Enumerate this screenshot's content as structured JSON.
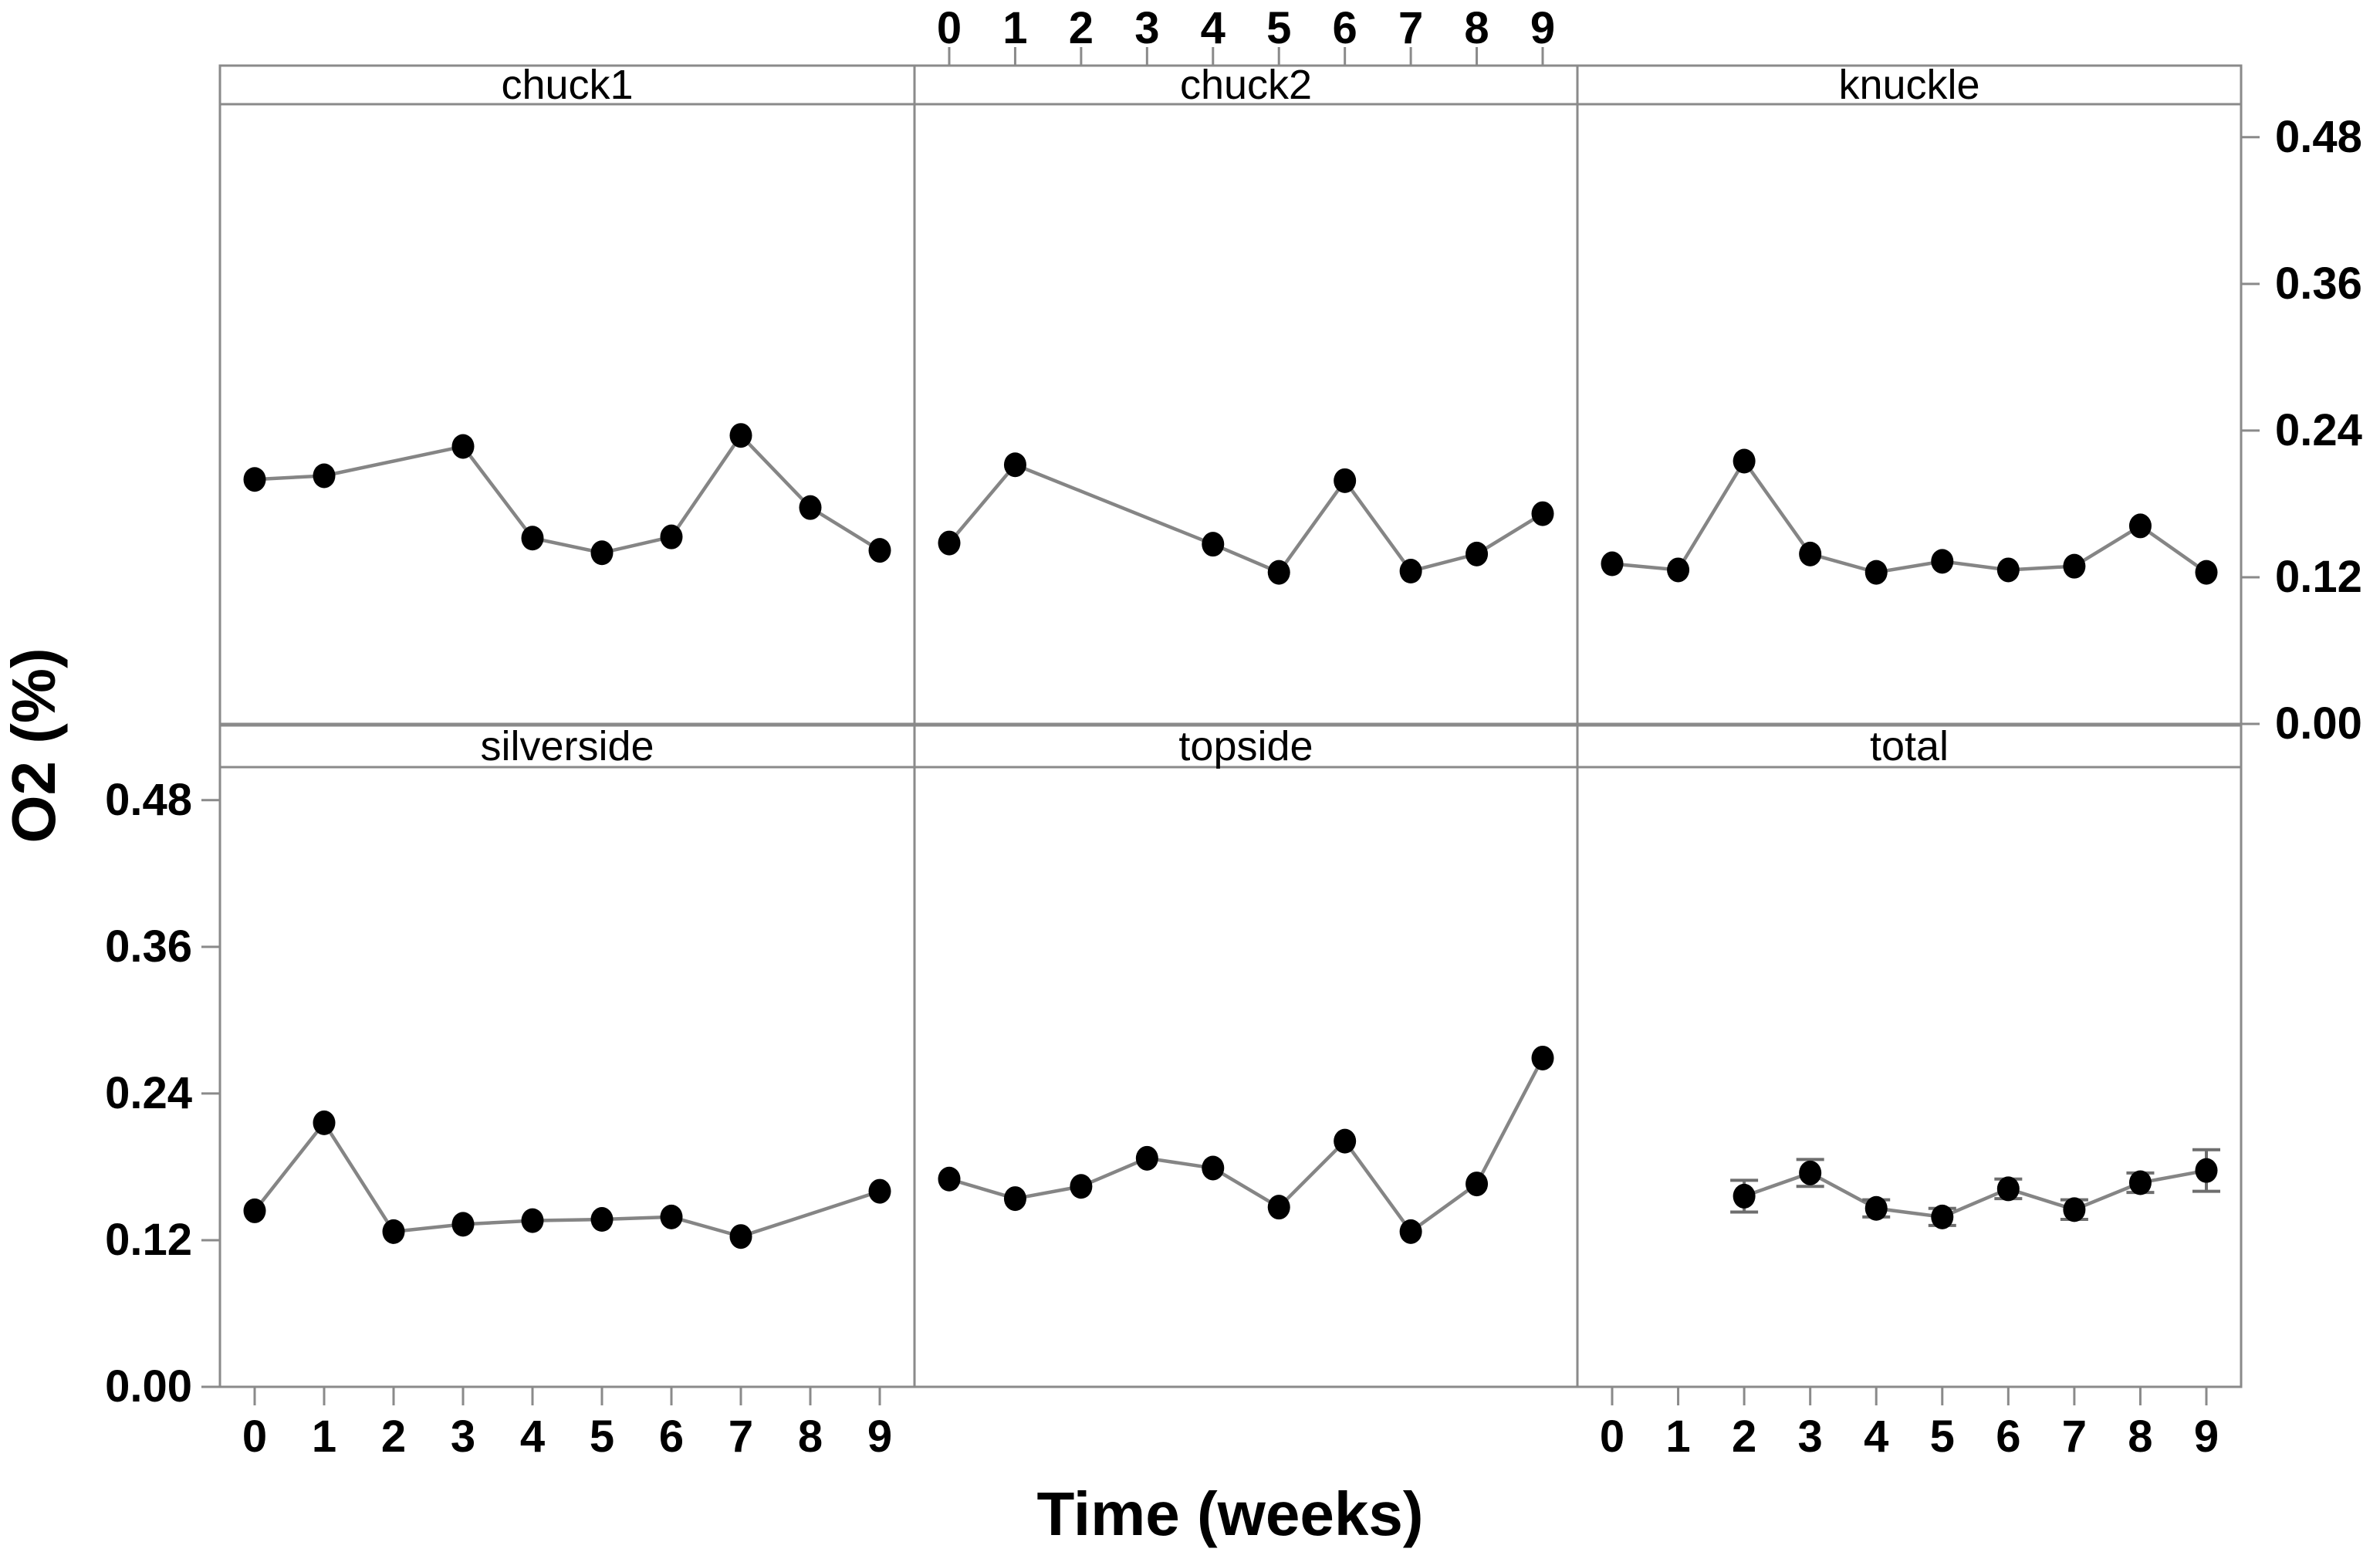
{
  "figure": {
    "xlabel": "Time (weeks)",
    "ylabel": "O2 (%)",
    "x_tick_values": [
      0,
      1,
      2,
      3,
      4,
      5,
      6,
      7,
      8,
      9
    ],
    "x_tick_labels": [
      "0",
      "1",
      "2",
      "3",
      "4",
      "5",
      "6",
      "7",
      "8",
      "9"
    ],
    "y_tick_values": [
      0.0,
      0.12,
      0.24,
      0.36,
      0.48
    ],
    "y_tick_labels": [
      "0.00",
      "0.12",
      "0.24",
      "0.36",
      "0.48"
    ],
    "ylim": [
      0,
      0.507
    ],
    "grid": "off",
    "layout": "2x3 trellis, strip title above each panel",
    "colors": {
      "point": "#000000",
      "line": "#858585",
      "border": "#8a8a8a",
      "error_bar": "#6e6e6e",
      "text": "#000000",
      "background": "#ffffff"
    }
  },
  "chart_data": [
    {
      "type": "line",
      "title": "chuck1",
      "row": 0,
      "col": 0,
      "x": [
        0,
        1,
        3,
        4,
        5,
        6,
        7,
        8,
        9
      ],
      "y": [
        0.2,
        0.203,
        0.227,
        0.152,
        0.14,
        0.153,
        0.236,
        0.177,
        0.142
      ]
    },
    {
      "type": "line",
      "title": "chuck2",
      "row": 0,
      "col": 1,
      "x": [
        0,
        1,
        4,
        5,
        6,
        7,
        8,
        9
      ],
      "y": [
        0.148,
        0.212,
        0.147,
        0.124,
        0.199,
        0.125,
        0.139,
        0.172
      ]
    },
    {
      "type": "line",
      "title": "knuckle",
      "row": 0,
      "col": 2,
      "x": [
        0,
        1,
        2,
        3,
        4,
        5,
        6,
        7,
        8,
        9
      ],
      "y": [
        0.131,
        0.126,
        0.215,
        0.139,
        0.124,
        0.133,
        0.126,
        0.129,
        0.162,
        0.124
      ]
    },
    {
      "type": "line",
      "title": "silverside",
      "row": 1,
      "col": 0,
      "x": [
        0,
        1,
        2,
        3,
        4,
        5,
        6,
        7,
        9
      ],
      "y": [
        0.144,
        0.216,
        0.127,
        0.133,
        0.136,
        0.137,
        0.139,
        0.123,
        0.16
      ]
    },
    {
      "type": "line",
      "title": "topside",
      "row": 1,
      "col": 1,
      "x": [
        0,
        1,
        2,
        3,
        4,
        5,
        6,
        7,
        8,
        9
      ],
      "y": [
        0.17,
        0.154,
        0.164,
        0.187,
        0.179,
        0.147,
        0.201,
        0.127,
        0.166,
        0.269
      ]
    },
    {
      "type": "line",
      "title": "total",
      "row": 1,
      "col": 2,
      "x": [
        2,
        3,
        4,
        5,
        6,
        7,
        8,
        9
      ],
      "y": [
        0.156,
        0.175,
        0.146,
        0.139,
        0.162,
        0.145,
        0.167,
        0.177
      ],
      "yerr": [
        0.013,
        0.011,
        0.007,
        0.007,
        0.008,
        0.008,
        0.008,
        0.017
      ]
    }
  ]
}
